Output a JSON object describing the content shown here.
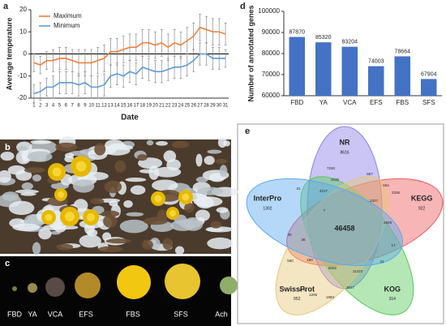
{
  "chart_data": [
    {
      "type": "line",
      "ylabel": "Average temperature",
      "xlabel": "Date",
      "categories": [
        "1",
        "2",
        "3",
        "4",
        "5",
        "6",
        "7",
        "8",
        "9",
        "10",
        "11",
        "12",
        "13",
        "14",
        "15",
        "16",
        "17",
        "18",
        "19",
        "20",
        "21",
        "22",
        "23",
        "24",
        "25",
        "26",
        "27",
        "28",
        "29",
        "30",
        "31"
      ],
      "series": [
        {
          "name": "Maximum",
          "color": "#f07f3c",
          "values": [
            -4,
            -5,
            -3,
            -3,
            -2,
            -2,
            -3,
            -4,
            -4,
            -4,
            -3,
            -2,
            1,
            1,
            2,
            3,
            3,
            5,
            5,
            4,
            5,
            3,
            5,
            4,
            6,
            8,
            12,
            11,
            10,
            10,
            9
          ],
          "errors": [
            4,
            4,
            4,
            5,
            5,
            5,
            5,
            6,
            6,
            6,
            6,
            6,
            6,
            6,
            6,
            6,
            6,
            6,
            6,
            6,
            6,
            6,
            6,
            6,
            6,
            6,
            6,
            6,
            6,
            6,
            5
          ]
        },
        {
          "name": "Minimum",
          "color": "#5b9bd5",
          "values": [
            -18,
            -17,
            -15,
            -15,
            -13,
            -13,
            -13,
            -14,
            -13,
            -15,
            -15,
            -14,
            -10,
            -9,
            -10,
            -8,
            -9,
            -6,
            -7,
            -8,
            -8,
            -7,
            -6,
            -6,
            -5,
            -3,
            0,
            0,
            -2,
            -2,
            -2
          ],
          "errors": [
            4,
            4,
            4,
            5,
            5,
            5,
            5,
            5,
            5,
            5,
            5,
            5,
            5,
            5,
            5,
            5,
            5,
            5,
            5,
            5,
            5,
            5,
            5,
            5,
            5,
            5,
            5,
            5,
            5,
            5,
            4
          ]
        }
      ],
      "ylim": [
        -20,
        20
      ],
      "yticks": [
        -20,
        -10,
        0,
        10,
        20
      ]
    },
    {
      "type": "bar",
      "ylabel": "Number of annotated genes",
      "categories": [
        "FBD",
        "YA",
        "VCA",
        "EFS",
        "FBS",
        "SFS"
      ],
      "values": [
        87870,
        85320,
        83204,
        74003,
        78664,
        67904
      ],
      "color": "#4472c4",
      "ylim": [
        60000,
        100000
      ],
      "yticks": [
        60000,
        70000,
        80000,
        90000,
        100000
      ]
    }
  ],
  "panel_labels": [
    "a",
    "b",
    "c",
    "d",
    "e"
  ],
  "stage_labels": [
    "FBD",
    "YA",
    "VCA",
    "EFS",
    "FBS",
    "SFS",
    "Ach"
  ],
  "venn": {
    "sets": [
      {
        "name": "NR",
        "count": 8616
      },
      {
        "name": "KEGG",
        "count": 922
      },
      {
        "name": "KOG",
        "count": 314
      },
      {
        "name": "SwissProt",
        "count": 952
      },
      {
        "name": "InterPro",
        "count": 1302
      }
    ],
    "center": 46458,
    "regions": [
      7230,
      2036,
      667,
      664,
      2336,
      2327,
      2609,
      4217,
      11223,
      8002,
      3017,
      1994,
      1205,
      176,
      560,
      190,
      31,
      30,
      17,
      41,
      7,
      36
    ]
  }
}
